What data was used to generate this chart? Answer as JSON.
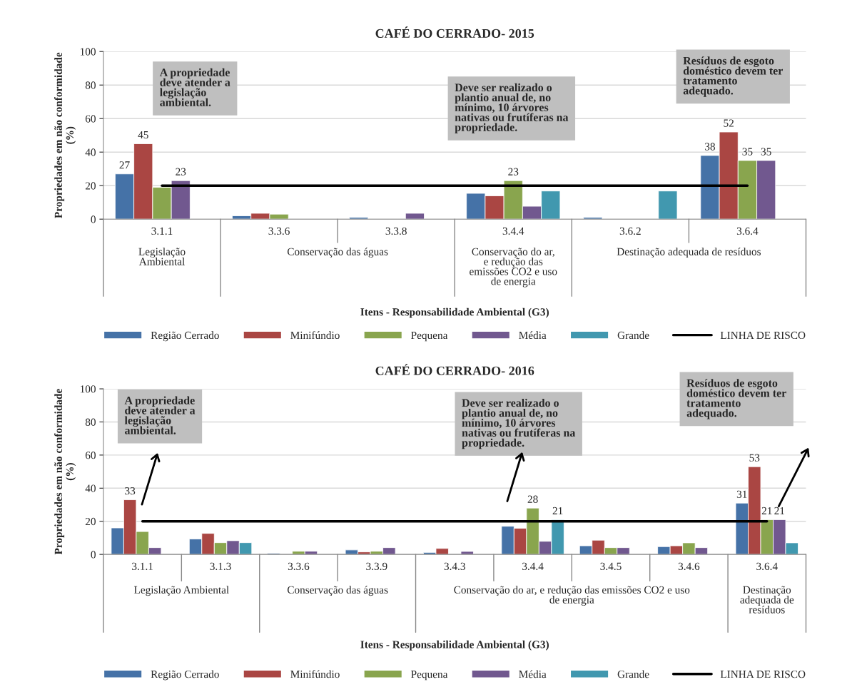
{
  "chart_data": [
    {
      "type": "bar",
      "title": "CAFÉ DO CERRADO- 2015",
      "xlabel": "Itens - Responsabilidade Ambiental (G3)",
      "ylabel": "Propriedades em não conformidade\n(%)",
      "categories": [
        "3.1.1",
        "3.3.6",
        "3.3.8",
        "3.4.4",
        "3.6.2",
        "3.6.4"
      ],
      "series": [
        {
          "name": "Região Cerrado",
          "color": "#4572a7",
          "values": [
            27,
            2,
            1,
            15.4,
            1,
            38
          ],
          "value_labels": [
            "27",
            null,
            null,
            null,
            null,
            "38"
          ]
        },
        {
          "name": "Minifúndio",
          "color": "#aa4643",
          "values": [
            45,
            3.5,
            null,
            13.9,
            null,
            52
          ],
          "value_labels": [
            "45",
            null,
            null,
            null,
            null,
            "52"
          ]
        },
        {
          "name": "Pequena",
          "color": "#89a54e",
          "values": [
            19,
            3,
            null,
            23,
            null,
            35
          ],
          "value_labels": [
            null,
            null,
            null,
            "23",
            null,
            "35"
          ]
        },
        {
          "name": "Média",
          "color": "#71588f",
          "values": [
            23,
            null,
            3.5,
            7.7,
            null,
            35
          ],
          "value_labels": [
            "23",
            null,
            null,
            null,
            null,
            "35"
          ]
        },
        {
          "name": "Grande",
          "color": "#4198af",
          "values": [
            null,
            null,
            null,
            16.8,
            16.8,
            null
          ]
        },
        {
          "name": "LINHA DE RISCO",
          "type": "line",
          "color": "#000000",
          "values": [
            20,
            20,
            20,
            20,
            20,
            20
          ]
        }
      ],
      "ylim": [
        0,
        100
      ],
      "yticks": [
        0,
        20,
        40,
        60,
        80,
        100
      ],
      "grid": "y",
      "legend": "bottom",
      "annotations": [
        "A propriedade\ndeve atender a\nlegislação\nambiental.",
        "Deve ser realizado o\nplantio anual de, no\nmínimo, 10 árvores\nnativas ou frutíferas na\npropriedade.",
        "Resíduos de esgoto\ndoméstico devem ter\ntratamento\nadequado.",
        "Legislação\nAmbiental",
        "Conservação das águas",
        "Conservação do ar,\ne redução das\nemissões CO2 e uso\nde energia",
        "Destinação adequada de resíduos"
      ]
    },
    {
      "type": "bar",
      "title": "CAFÉ DO CERRADO- 2016",
      "xlabel": "Itens - Responsabilidade Ambiental (G3)",
      "ylabel": "Propriedades em não conformidade\n(%)",
      "categories": [
        "3.1.1",
        "3.1.3",
        "3.3.6",
        "3.3.9",
        "3.4.3",
        "3.4.4",
        "3.4.5",
        "3.4.6",
        "3.6.4"
      ],
      "series": [
        {
          "name": "Região Cerrado",
          "color": "#4572a7",
          "values": [
            16,
            9.3,
            0.7,
            2.7,
            1.2,
            17,
            5.2,
            4.7,
            31
          ],
          "value_labels": [
            null,
            null,
            null,
            null,
            null,
            null,
            null,
            null,
            "31"
          ]
        },
        {
          "name": "Minifúndio",
          "color": "#aa4643",
          "values": [
            33,
            12.7,
            null,
            1.5,
            3.6,
            15.8,
            8.6,
            5.2,
            53
          ],
          "value_labels": [
            "33",
            null,
            null,
            null,
            null,
            null,
            null,
            null,
            "53"
          ]
        },
        {
          "name": "Pequena",
          "color": "#89a54e",
          "values": [
            13.8,
            7.1,
            1.9,
            1.9,
            null,
            28,
            4.1,
            7,
            21
          ],
          "value_labels": [
            null,
            null,
            null,
            null,
            null,
            "28",
            null,
            null,
            "21"
          ]
        },
        {
          "name": "Média",
          "color": "#71588f",
          "values": [
            4.1,
            8.3,
            1.9,
            4.1,
            1.8,
            7.9,
            4.1,
            4.1,
            21
          ],
          "value_labels": [
            null,
            null,
            null,
            null,
            null,
            null,
            null,
            null,
            "21"
          ]
        },
        {
          "name": "Grande",
          "color": "#4198af",
          "values": [
            null,
            7.1,
            null,
            null,
            null,
            21,
            null,
            null,
            7
          ],
          "value_labels": [
            null,
            null,
            null,
            null,
            null,
            "21",
            null,
            null,
            null
          ]
        },
        {
          "name": "LINHA DE RISCO",
          "type": "line",
          "color": "#000000",
          "values": [
            20,
            20,
            20,
            20,
            20,
            20,
            20,
            20,
            20
          ]
        }
      ],
      "ylim": [
        0,
        100
      ],
      "yticks": [
        0,
        20,
        40,
        60,
        80,
        100
      ],
      "grid": "y",
      "legend": "bottom",
      "annotations": [
        "A propriedade\ndeve atender a\nlegislação\nambiental.",
        "Deve ser realizado o\nplantio anual de, no\nmínimo, 10 árvores\nnativas ou frutíferas na\npropriedade.",
        "Resíduos de esgoto\ndoméstico devem ter\ntratamento\nadequado.",
        "Legislação Ambiental",
        "Conservação das águas",
        "Conservação do ar, e redução das emissões CO2 e uso\nde energia",
        "Destinação\nadequada de\nresíduos"
      ]
    }
  ]
}
